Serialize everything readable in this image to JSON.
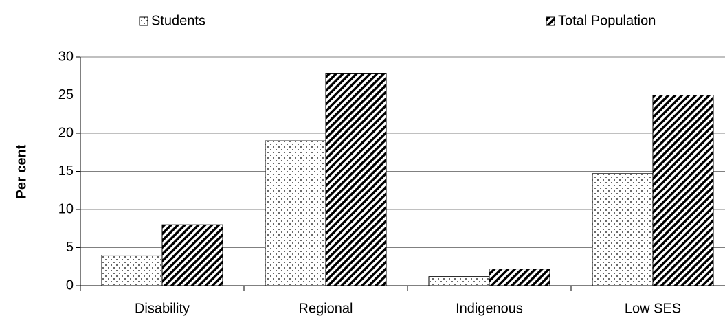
{
  "chart_data": {
    "type": "bar",
    "y_label": "Per cent",
    "categories": [
      "Disability",
      "Regional",
      "Indigenous",
      "Low SES"
    ],
    "series": [
      {
        "name": "Students",
        "color": "#000000",
        "pattern": "dots",
        "values": [
          4,
          19,
          1.2,
          14.7
        ]
      },
      {
        "name": "Total Population",
        "color": "#000000",
        "pattern": "diagonal",
        "values": [
          8,
          27.8,
          2.2,
          25
        ]
      }
    ],
    "ylim": [
      0,
      30
    ],
    "yticks": [
      0,
      5,
      10,
      15,
      20,
      25,
      30
    ],
    "grid": true,
    "legend": "top"
  }
}
